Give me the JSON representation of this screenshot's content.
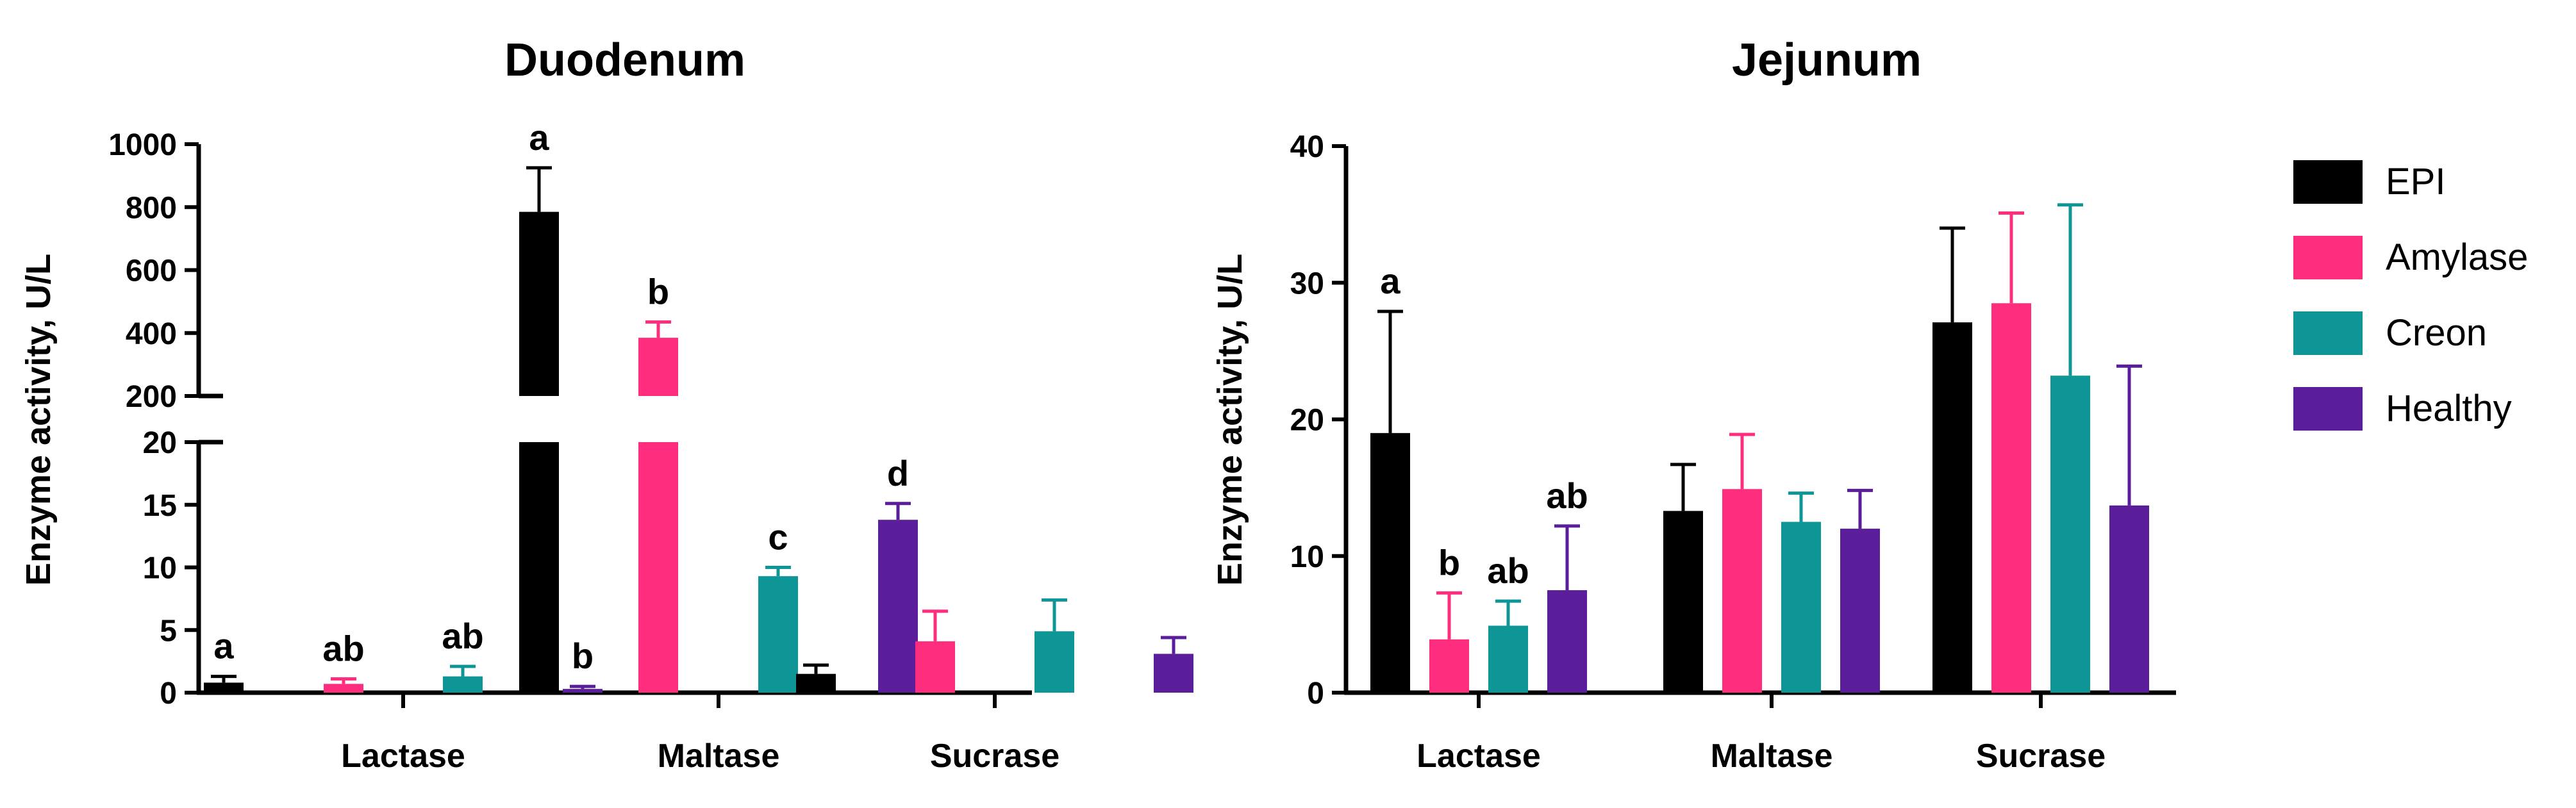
{
  "colors": {
    "EPI": "#000000",
    "Amylase": "#ff2d7e",
    "Creon": "#0e9596",
    "Healthy": "#5b1e9a"
  },
  "legend": {
    "items": [
      "EPI",
      "Amylase",
      "Creon",
      "Healthy"
    ]
  },
  "chart_data": [
    {
      "type": "bar",
      "title": "Duodenum",
      "ylabel": "Enzyme activity, U/L",
      "categories": [
        "Lactase",
        "Maltase",
        "Sucrase"
      ],
      "axis_break": true,
      "ylim_lower": [
        0,
        20
      ],
      "ylim_upper": [
        200,
        1000
      ],
      "yticks_lower": [
        "0",
        "5",
        "10",
        "15",
        "20"
      ],
      "yticks_upper": [
        "200",
        "400",
        "600",
        "800",
        "1000"
      ],
      "series": [
        {
          "name": "EPI",
          "values": [
            0.8,
            785,
            1.5
          ],
          "errors": [
            0.5,
            140,
            0.7
          ]
        },
        {
          "name": "Amylase",
          "values": [
            0.7,
            385,
            4.1
          ],
          "errors": [
            0.4,
            50,
            2.4
          ]
        },
        {
          "name": "Creon",
          "values": [
            1.3,
            9.3,
            4.9
          ],
          "errors": [
            0.8,
            0.7,
            2.5
          ]
        },
        {
          "name": "Healthy",
          "values": [
            0.3,
            13.8,
            3.1
          ],
          "errors": [
            0.2,
            1.3,
            1.3
          ]
        }
      ],
      "annotations": [
        [
          "a",
          "ab",
          "ab",
          "b"
        ],
        [
          "a",
          "b",
          "c",
          "d"
        ],
        [
          "",
          "",
          "",
          ""
        ]
      ]
    },
    {
      "type": "bar",
      "title": "Jejunum",
      "ylabel": "Enzyme activity, U/L",
      "categories": [
        "Lactase",
        "Maltase",
        "Sucrase"
      ],
      "ylim": [
        0,
        40
      ],
      "yticks": [
        "0",
        "10",
        "20",
        "30",
        "40"
      ],
      "series": [
        {
          "name": "EPI",
          "values": [
            19.0,
            13.3,
            27.1
          ],
          "errors": [
            8.9,
            3.4,
            6.9
          ]
        },
        {
          "name": "Amylase",
          "values": [
            3.9,
            14.9,
            28.5
          ],
          "errors": [
            3.4,
            4.0,
            6.6
          ]
        },
        {
          "name": "Creon",
          "values": [
            4.9,
            12.5,
            23.2
          ],
          "errors": [
            1.8,
            2.1,
            12.5
          ]
        },
        {
          "name": "Healthy",
          "values": [
            7.5,
            12.0,
            13.7
          ],
          "errors": [
            4.7,
            2.8,
            10.2
          ]
        }
      ],
      "annotations": [
        [
          "a",
          "b",
          "ab",
          "ab"
        ],
        [
          "",
          "",
          "",
          ""
        ],
        [
          "",
          "",
          "",
          ""
        ]
      ]
    }
  ]
}
